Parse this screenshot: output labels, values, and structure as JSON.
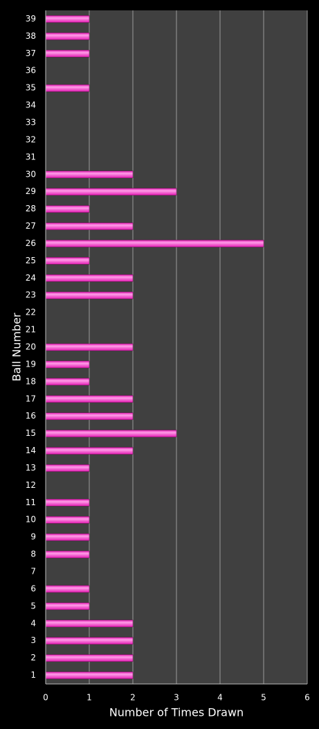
{
  "chart_data": {
    "type": "bar",
    "orientation": "horizontal",
    "x_label": "Number of Times Drawn",
    "y_label": "Ball Number",
    "categories": [
      "1",
      "2",
      "3",
      "4",
      "5",
      "6",
      "7",
      "8",
      "9",
      "10",
      "11",
      "12",
      "13",
      "14",
      "15",
      "16",
      "17",
      "18",
      "19",
      "20",
      "21",
      "22",
      "23",
      "24",
      "25",
      "26",
      "27",
      "28",
      "29",
      "30",
      "31",
      "32",
      "33",
      "34",
      "35",
      "36",
      "37",
      "38",
      "39"
    ],
    "values": [
      2,
      2,
      2,
      2,
      1,
      1,
      0,
      1,
      1,
      1,
      1,
      0,
      1,
      2,
      3,
      2,
      2,
      1,
      1,
      2,
      0,
      0,
      2,
      2,
      1,
      5,
      2,
      1,
      3,
      2,
      0,
      0,
      0,
      0,
      1,
      0,
      1,
      1,
      1
    ],
    "color": "#e21cb2",
    "xlim": [
      0,
      6
    ],
    "xticks": [
      0,
      1,
      2,
      3,
      4,
      5,
      6
    ],
    "grid": true
  }
}
